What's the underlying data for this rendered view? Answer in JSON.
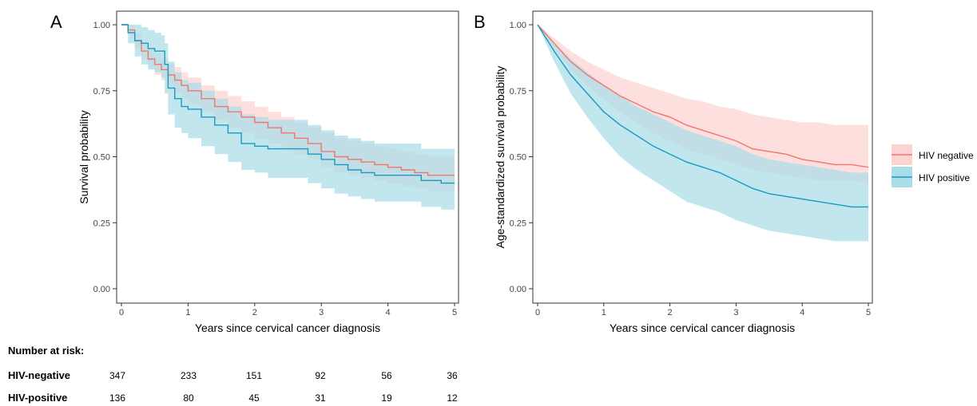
{
  "colors": {
    "hiv_negative": "#f0766d",
    "hiv_negative_ci": "#fcd3d0",
    "hiv_positive": "#1a9ac0",
    "hiv_positive_ci": "#a9dde7"
  },
  "chart_data": [
    {
      "type": "line",
      "panel_label": "A",
      "xlabel": "Years since cervical cancer diagnosis",
      "ylabel": "Survival probability",
      "xlim": [
        0,
        5
      ],
      "ylim": [
        0,
        1
      ],
      "x_ticks": [
        "0",
        "1",
        "2",
        "3",
        "4",
        "5"
      ],
      "y_ticks": [
        "0.00",
        "0.25",
        "0.50",
        "0.75",
        "1.00"
      ],
      "grid": false,
      "step": true,
      "series": [
        {
          "key": "hiv_negative",
          "x": [
            0,
            0.1,
            0.2,
            0.3,
            0.4,
            0.5,
            0.6,
            0.7,
            0.8,
            0.9,
            1.0,
            1.2,
            1.4,
            1.6,
            1.8,
            2.0,
            2.2,
            2.4,
            2.6,
            2.8,
            3.0,
            3.2,
            3.4,
            3.6,
            3.8,
            4.0,
            4.2,
            4.4,
            4.6,
            4.8,
            5.0
          ],
          "y": [
            1.0,
            0.98,
            0.94,
            0.9,
            0.87,
            0.85,
            0.83,
            0.81,
            0.79,
            0.77,
            0.75,
            0.72,
            0.69,
            0.67,
            0.65,
            0.63,
            0.61,
            0.59,
            0.57,
            0.55,
            0.52,
            0.5,
            0.49,
            0.48,
            0.47,
            0.46,
            0.45,
            0.44,
            0.43,
            0.43,
            0.43
          ],
          "ci_low": [
            1.0,
            0.96,
            0.91,
            0.87,
            0.84,
            0.81,
            0.79,
            0.76,
            0.74,
            0.72,
            0.7,
            0.67,
            0.64,
            0.61,
            0.59,
            0.57,
            0.55,
            0.53,
            0.51,
            0.49,
            0.46,
            0.44,
            0.43,
            0.42,
            0.41,
            0.4,
            0.39,
            0.38,
            0.37,
            0.37,
            0.37
          ],
          "ci_high": [
            1.0,
            1.0,
            0.97,
            0.93,
            0.91,
            0.89,
            0.87,
            0.85,
            0.84,
            0.82,
            0.8,
            0.77,
            0.75,
            0.73,
            0.71,
            0.69,
            0.67,
            0.65,
            0.63,
            0.61,
            0.59,
            0.57,
            0.56,
            0.55,
            0.54,
            0.53,
            0.52,
            0.51,
            0.5,
            0.5,
            0.5
          ]
        },
        {
          "key": "hiv_positive",
          "x": [
            0,
            0.1,
            0.2,
            0.3,
            0.4,
            0.5,
            0.6,
            0.65,
            0.7,
            0.8,
            0.9,
            1.0,
            1.2,
            1.4,
            1.6,
            1.8,
            2.0,
            2.2,
            2.4,
            2.6,
            2.8,
            3.0,
            3.2,
            3.4,
            3.6,
            3.8,
            4.0,
            4.2,
            4.4,
            4.5,
            4.8,
            5.0
          ],
          "y": [
            1.0,
            0.97,
            0.94,
            0.93,
            0.91,
            0.9,
            0.9,
            0.85,
            0.76,
            0.72,
            0.69,
            0.68,
            0.65,
            0.62,
            0.59,
            0.55,
            0.54,
            0.53,
            0.53,
            0.53,
            0.51,
            0.49,
            0.47,
            0.45,
            0.44,
            0.43,
            0.43,
            0.43,
            0.43,
            0.41,
            0.4,
            0.4
          ],
          "ci_low": [
            1.0,
            0.93,
            0.88,
            0.85,
            0.83,
            0.82,
            0.8,
            0.74,
            0.66,
            0.61,
            0.59,
            0.57,
            0.54,
            0.51,
            0.48,
            0.45,
            0.44,
            0.42,
            0.42,
            0.42,
            0.4,
            0.38,
            0.36,
            0.35,
            0.34,
            0.33,
            0.33,
            0.33,
            0.33,
            0.31,
            0.3,
            0.3
          ],
          "ci_high": [
            1.0,
            1.0,
            1.0,
            0.99,
            0.98,
            0.97,
            0.96,
            0.93,
            0.86,
            0.82,
            0.79,
            0.78,
            0.75,
            0.72,
            0.69,
            0.66,
            0.65,
            0.64,
            0.64,
            0.64,
            0.62,
            0.6,
            0.58,
            0.57,
            0.56,
            0.55,
            0.55,
            0.55,
            0.55,
            0.53,
            0.53,
            0.53
          ]
        }
      ],
      "risk_table": {
        "title": "Number at risk:",
        "x": [
          0,
          1,
          2,
          3,
          4,
          5
        ],
        "rows": [
          {
            "label": "HIV-negative",
            "values": [
              "347",
              "233",
              "151",
              "92",
              "56",
              "36"
            ]
          },
          {
            "label": "HIV-positive",
            "values": [
              "136",
              "80",
              "45",
              "31",
              "19",
              "12"
            ]
          }
        ]
      }
    },
    {
      "type": "line",
      "panel_label": "B",
      "xlabel": "Years since cervical cancer diagnosis",
      "ylabel": "Age-standardized survival probability",
      "xlim": [
        0,
        5
      ],
      "ylim": [
        0,
        1
      ],
      "x_ticks": [
        "0",
        "1",
        "2",
        "3",
        "4",
        "5"
      ],
      "y_ticks": [
        "0.00",
        "0.25",
        "0.50",
        "0.75",
        "1.00"
      ],
      "grid": false,
      "step": false,
      "legend_position": "right",
      "series": [
        {
          "key": "hiv_negative",
          "name": "HIV negative",
          "x": [
            0,
            0.25,
            0.5,
            0.75,
            1.0,
            1.25,
            1.5,
            1.75,
            2.0,
            2.25,
            2.5,
            2.75,
            3.0,
            3.25,
            3.5,
            3.75,
            4.0,
            4.25,
            4.5,
            4.75,
            5.0
          ],
          "y": [
            1.0,
            0.93,
            0.86,
            0.81,
            0.77,
            0.73,
            0.7,
            0.67,
            0.65,
            0.62,
            0.6,
            0.58,
            0.56,
            0.53,
            0.52,
            0.51,
            0.49,
            0.48,
            0.47,
            0.47,
            0.46
          ],
          "ci_low": [
            1.0,
            0.91,
            0.83,
            0.77,
            0.72,
            0.67,
            0.63,
            0.59,
            0.56,
            0.53,
            0.51,
            0.49,
            0.47,
            0.45,
            0.44,
            0.43,
            0.42,
            0.41,
            0.41,
            0.41,
            0.4
          ],
          "ci_high": [
            1.0,
            0.95,
            0.9,
            0.86,
            0.83,
            0.8,
            0.78,
            0.76,
            0.74,
            0.72,
            0.71,
            0.69,
            0.68,
            0.66,
            0.65,
            0.64,
            0.63,
            0.63,
            0.62,
            0.62,
            0.62
          ]
        },
        {
          "key": "hiv_positive",
          "name": "HIV positive",
          "x": [
            0,
            0.25,
            0.5,
            0.75,
            1.0,
            1.25,
            1.5,
            1.75,
            2.0,
            2.25,
            2.5,
            2.75,
            3.0,
            3.25,
            3.5,
            3.75,
            4.0,
            4.25,
            4.5,
            4.75,
            5.0
          ],
          "y": [
            1.0,
            0.9,
            0.81,
            0.74,
            0.67,
            0.62,
            0.58,
            0.54,
            0.51,
            0.48,
            0.46,
            0.44,
            0.41,
            0.38,
            0.36,
            0.35,
            0.34,
            0.33,
            0.32,
            0.31,
            0.31
          ],
          "ci_low": [
            1.0,
            0.86,
            0.74,
            0.65,
            0.57,
            0.5,
            0.45,
            0.41,
            0.37,
            0.33,
            0.31,
            0.29,
            0.26,
            0.24,
            0.22,
            0.21,
            0.2,
            0.19,
            0.18,
            0.18,
            0.18
          ],
          "ci_high": [
            1.0,
            0.93,
            0.87,
            0.82,
            0.77,
            0.73,
            0.69,
            0.66,
            0.63,
            0.6,
            0.58,
            0.56,
            0.54,
            0.51,
            0.49,
            0.48,
            0.47,
            0.46,
            0.45,
            0.44,
            0.44
          ]
        }
      ]
    }
  ]
}
